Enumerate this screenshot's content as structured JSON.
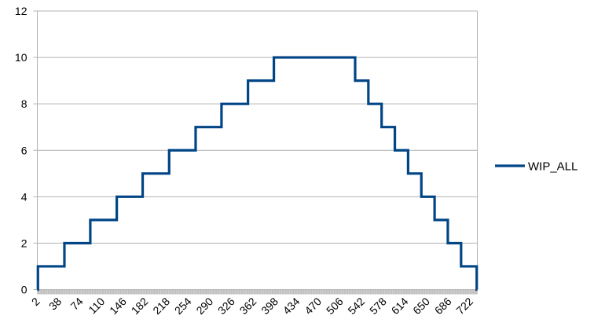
{
  "chart_data": {
    "type": "line",
    "line_style": "step",
    "title": "",
    "xlabel": "",
    "ylabel": "",
    "ylim": [
      0,
      12
    ],
    "xlim": [
      2,
      733
    ],
    "yticks": [
      0,
      2,
      4,
      6,
      8,
      10,
      12
    ],
    "xticks": [
      "2",
      "38",
      "74",
      "110",
      "146",
      "182",
      "218",
      "254",
      "290",
      "326",
      "362",
      "398",
      "434",
      "470",
      "506",
      "542",
      "578",
      "614",
      "650",
      "686",
      "722"
    ],
    "grid": "horizontal",
    "legend_position": "right",
    "series": [
      {
        "name": "WIP_ALL",
        "color": "#004586",
        "steps": [
          {
            "x": 2,
            "y": 0
          },
          {
            "x": 3,
            "y": 1
          },
          {
            "x": 47,
            "y": 2
          },
          {
            "x": 90,
            "y": 3
          },
          {
            "x": 134,
            "y": 4
          },
          {
            "x": 177,
            "y": 5
          },
          {
            "x": 221,
            "y": 6
          },
          {
            "x": 265,
            "y": 7
          },
          {
            "x": 308,
            "y": 8
          },
          {
            "x": 352,
            "y": 9
          },
          {
            "x": 395,
            "y": 10
          },
          {
            "x": 530,
            "y": 9
          },
          {
            "x": 552,
            "y": 8
          },
          {
            "x": 574,
            "y": 7
          },
          {
            "x": 596,
            "y": 6
          },
          {
            "x": 618,
            "y": 5
          },
          {
            "x": 640,
            "y": 4
          },
          {
            "x": 662,
            "y": 3
          },
          {
            "x": 684,
            "y": 2
          },
          {
            "x": 706,
            "y": 1
          },
          {
            "x": 732,
            "y": 0
          }
        ]
      }
    ]
  }
}
